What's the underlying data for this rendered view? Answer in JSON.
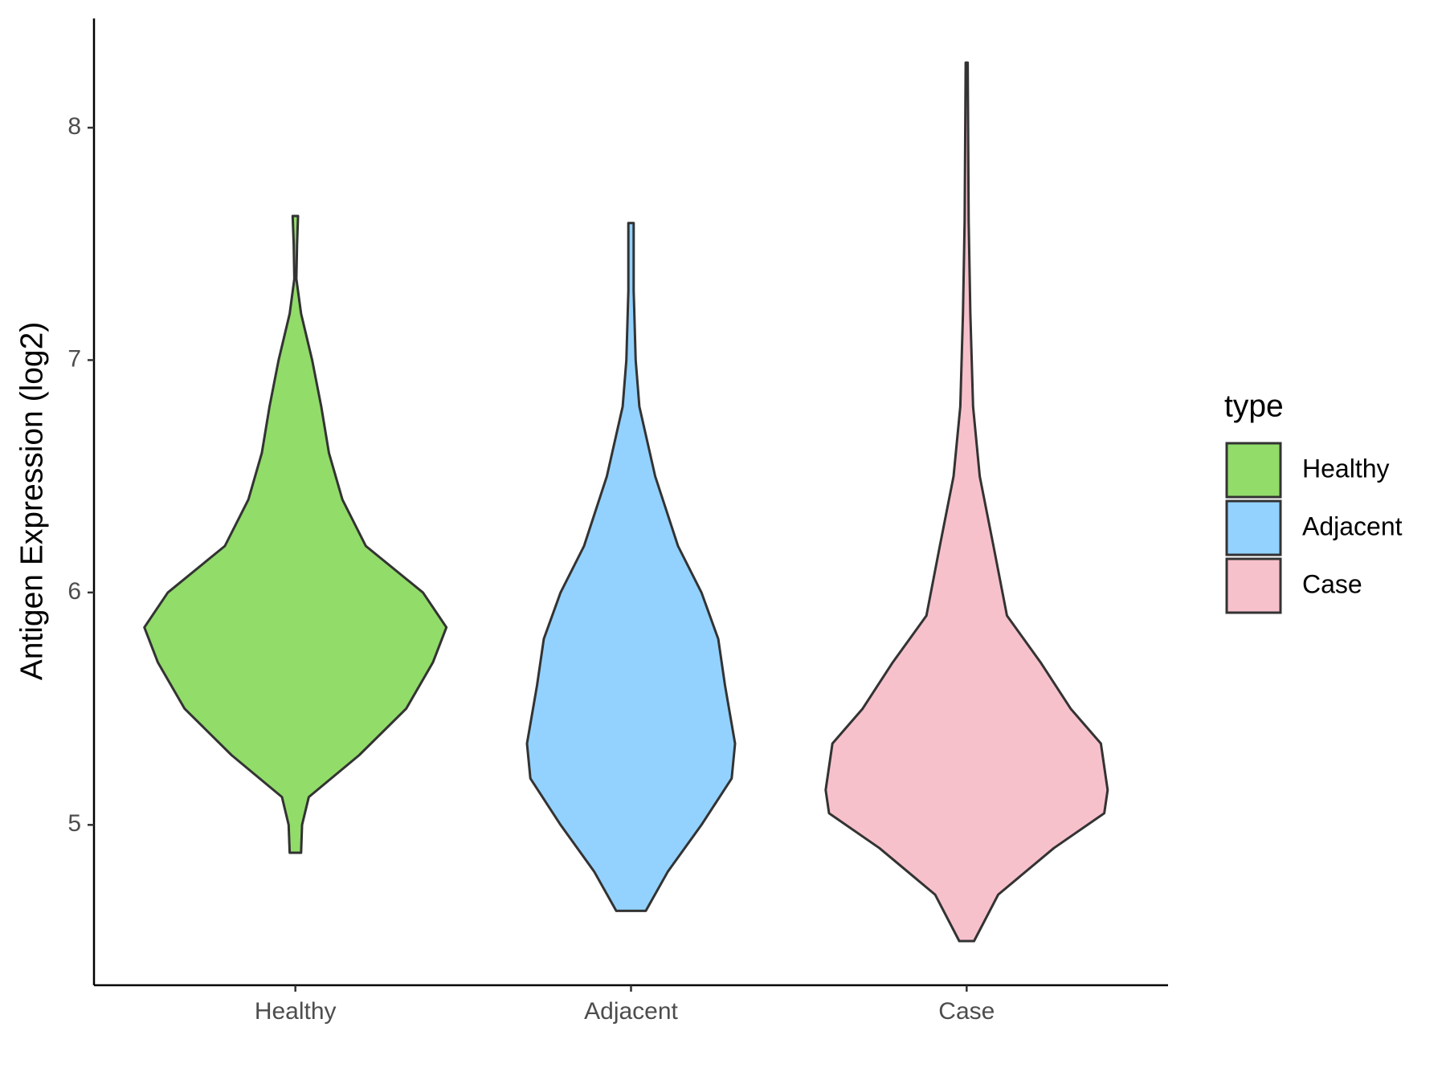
{
  "chart_data": {
    "type": "violin",
    "y_label": "Antigen Expression (log2)",
    "categories": [
      "Healthy",
      "Adjacent",
      "Case"
    ],
    "legend_title": "type",
    "legend_position": "right",
    "series": [
      {
        "name": "Healthy",
        "color": "#92dc6a",
        "y": [
          4.88,
          5.0,
          5.12,
          5.3,
          5.5,
          5.7,
          5.85,
          6.0,
          6.2,
          6.4,
          6.6,
          6.8,
          7.0,
          7.2,
          7.35,
          7.5,
          7.62
        ],
        "width": [
          0.017,
          0.02,
          0.04,
          0.19,
          0.33,
          0.41,
          0.45,
          0.38,
          0.21,
          0.14,
          0.1,
          0.077,
          0.05,
          0.017,
          0.003,
          0.005,
          0.008
        ]
      },
      {
        "name": "Adjacent",
        "color": "#93d2ff",
        "y": [
          4.63,
          4.8,
          5.0,
          5.2,
          5.35,
          5.6,
          5.8,
          6.0,
          6.2,
          6.5,
          6.8,
          7.0,
          7.3,
          7.59
        ],
        "width": [
          0.044,
          0.11,
          0.21,
          0.3,
          0.31,
          0.28,
          0.26,
          0.21,
          0.14,
          0.072,
          0.025,
          0.014,
          0.008,
          0.008
        ]
      },
      {
        "name": "Case",
        "color": "#f7c1cc",
        "y": [
          4.5,
          4.7,
          4.9,
          5.05,
          5.15,
          5.35,
          5.5,
          5.7,
          5.9,
          6.2,
          6.5,
          6.8,
          7.2,
          7.6,
          8.28
        ],
        "width": [
          0.022,
          0.094,
          0.26,
          0.41,
          0.42,
          0.4,
          0.31,
          0.22,
          0.12,
          0.08,
          0.039,
          0.019,
          0.011,
          0.006,
          0.003
        ]
      }
    ],
    "ylim": [
      4.31,
      8.47
    ],
    "yticks": [
      5,
      6,
      7,
      8
    ],
    "grid": false
  }
}
